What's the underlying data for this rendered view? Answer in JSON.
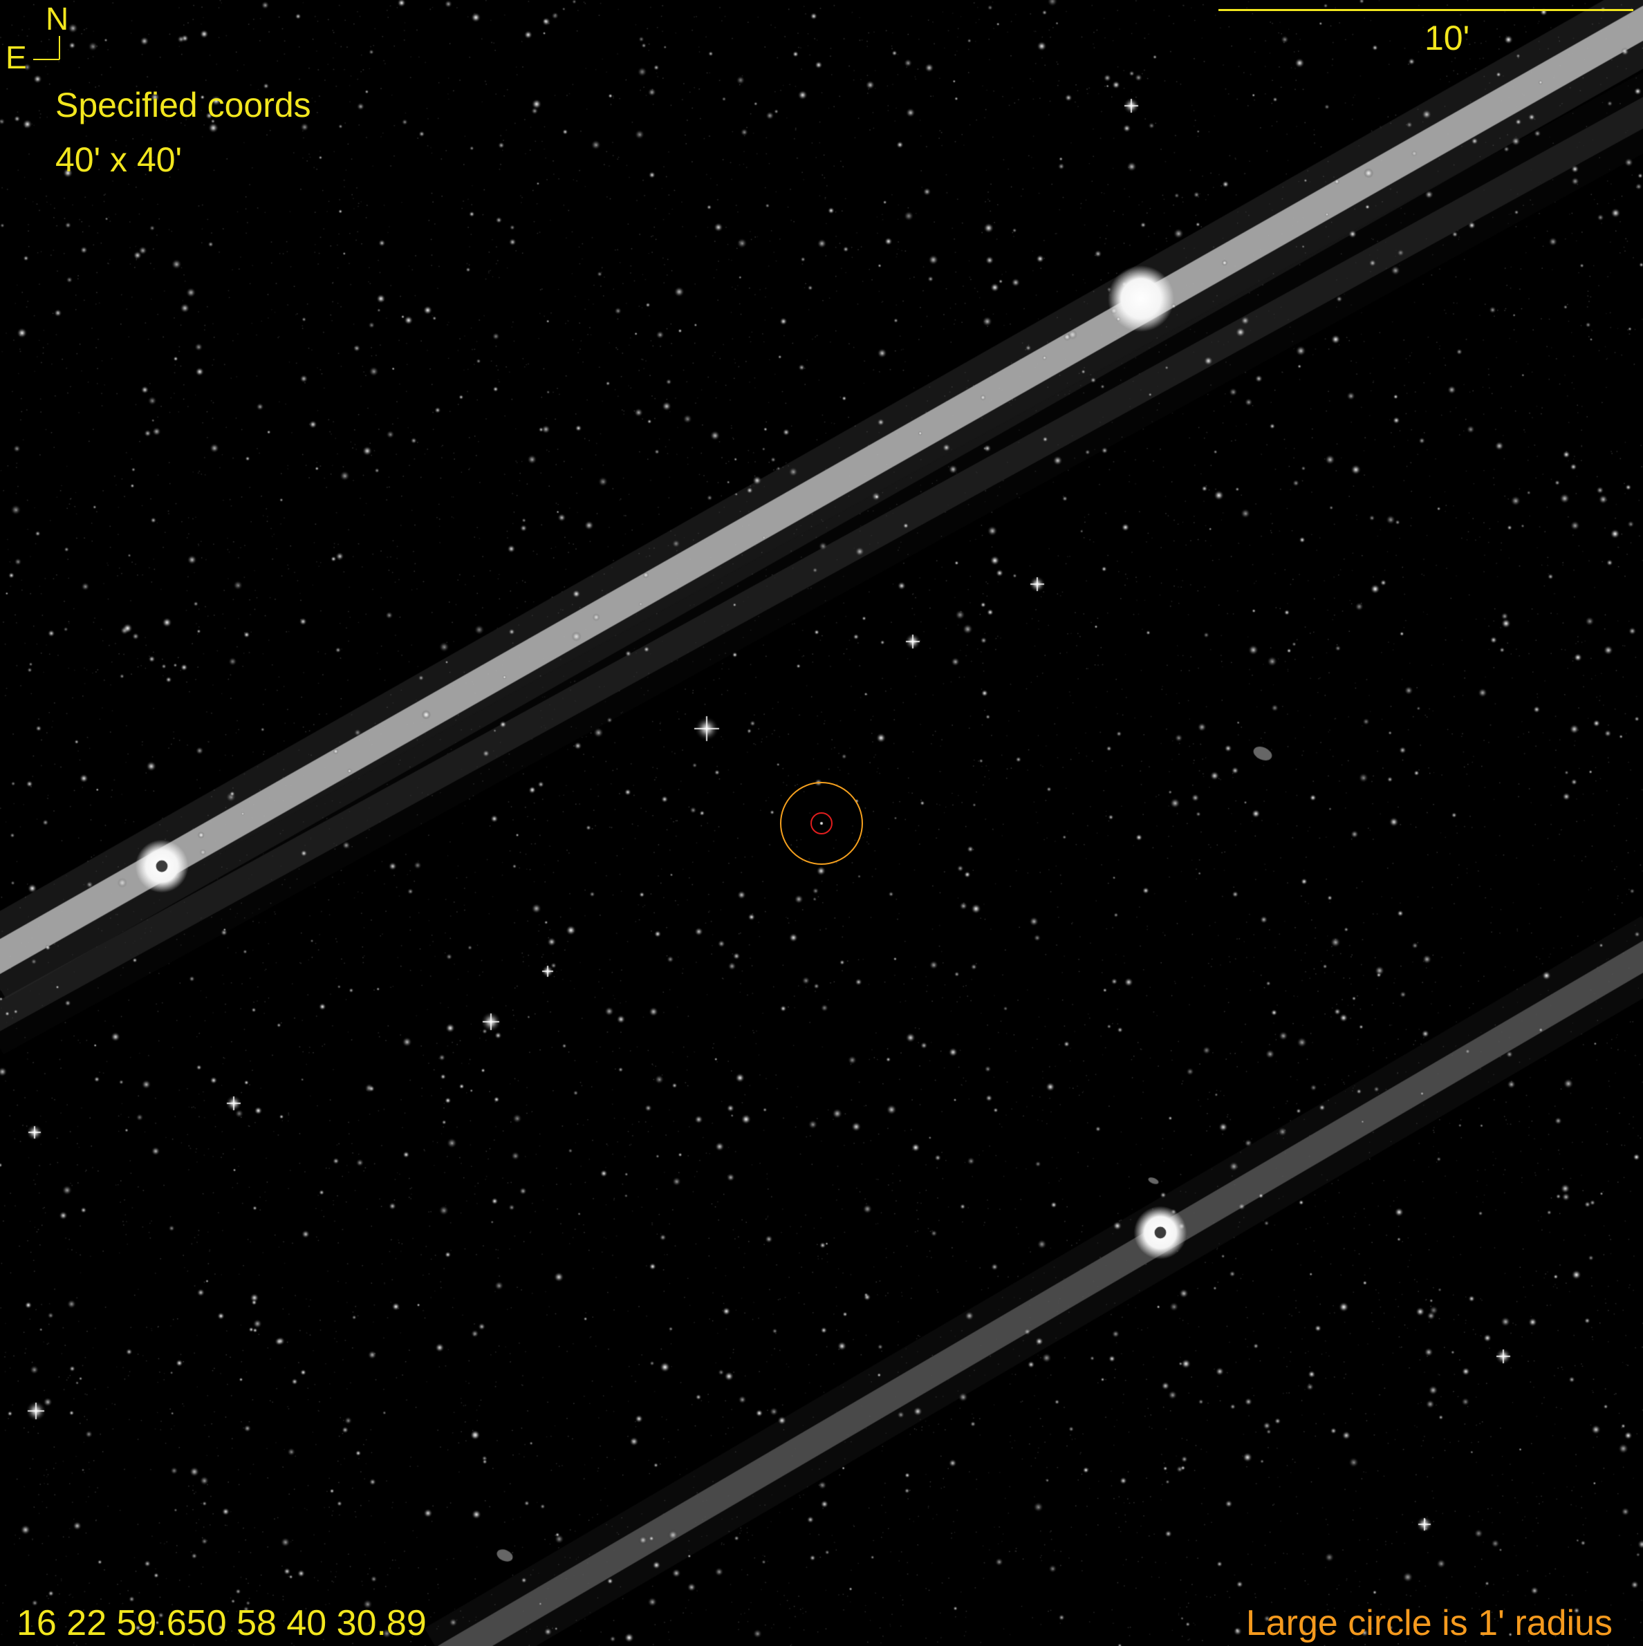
{
  "compass": {
    "north": "N",
    "east": "E"
  },
  "header": {
    "title": "Specified coords",
    "field_of_view": "40' x 40'"
  },
  "scale_bar": {
    "label": "10'"
  },
  "footer": {
    "coordinates": "16 22 59.650  58 40 30.89",
    "circle_note": "Large circle is 1' radius"
  },
  "colors": {
    "label_yellow": "#f2e61e",
    "note_orange": "#f59a1e",
    "target_red": "#e01e1e",
    "background": "#000000"
  },
  "image": {
    "kind": "astronomical sky survey finder chart",
    "content": "star field with two diagonal satellite trails"
  }
}
